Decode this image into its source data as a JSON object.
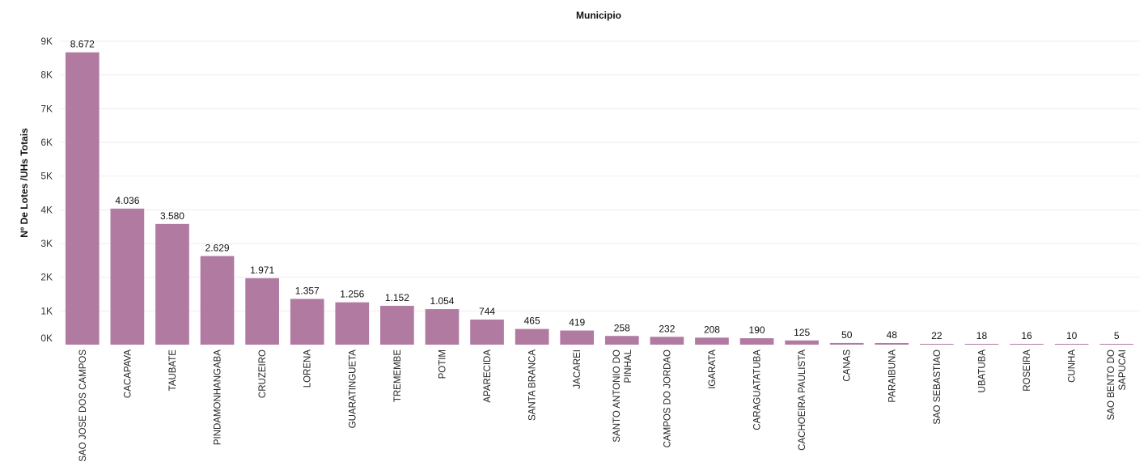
{
  "chart_data": {
    "type": "bar",
    "title": "Municipio",
    "ylabel": "Nº De Lotes /UHs Totais",
    "xlabel": "",
    "ylim": [
      0,
      9000
    ],
    "yticks": [
      {
        "value": 0,
        "label": "0K"
      },
      {
        "value": 1000,
        "label": "1K"
      },
      {
        "value": 2000,
        "label": "2K"
      },
      {
        "value": 3000,
        "label": "3K"
      },
      {
        "value": 4000,
        "label": "4K"
      },
      {
        "value": 5000,
        "label": "5K"
      },
      {
        "value": 6000,
        "label": "6K"
      },
      {
        "value": 7000,
        "label": "7K"
      },
      {
        "value": 8000,
        "label": "8K"
      },
      {
        "value": 9000,
        "label": "9K"
      }
    ],
    "grid": true,
    "bar_color": "#b07aa1",
    "categories": [
      [
        "SAO JOSE DOS CAMPOS"
      ],
      [
        "CACAPAVA"
      ],
      [
        "TAUBATE"
      ],
      [
        "PINDAMONHANGABA"
      ],
      [
        "CRUZEIRO"
      ],
      [
        "LORENA"
      ],
      [
        "GUARATINGUETA"
      ],
      [
        "TREMEMBE"
      ],
      [
        "POTIM"
      ],
      [
        "APARECIDA"
      ],
      [
        "SANTA BRANCA"
      ],
      [
        "JACAREI"
      ],
      [
        "SANTO ANTONIO DO",
        "PINHAL"
      ],
      [
        "CAMPOS DO JORDAO"
      ],
      [
        "IGARATA"
      ],
      [
        "CARAGUATATUBA"
      ],
      [
        "CACHOEIRA PAULISTA"
      ],
      [
        "CANAS"
      ],
      [
        "PARAIBUNA"
      ],
      [
        "SAO SEBASTIAO"
      ],
      [
        "UBATUBA"
      ],
      [
        "ROSEIRA"
      ],
      [
        "CUNHA"
      ],
      [
        "SAO BENTO DO",
        "SAPUCAI"
      ]
    ],
    "values": [
      8672,
      4036,
      3580,
      2629,
      1971,
      1357,
      1256,
      1152,
      1054,
      744,
      465,
      419,
      258,
      232,
      208,
      190,
      125,
      50,
      48,
      22,
      18,
      16,
      10,
      5
    ],
    "value_labels": [
      "8.672",
      "4.036",
      "3.580",
      "2.629",
      "1.971",
      "1.357",
      "1.256",
      "1.152",
      "1.054",
      "744",
      "465",
      "419",
      "258",
      "232",
      "208",
      "190",
      "125",
      "50",
      "48",
      "22",
      "18",
      "16",
      "10",
      "5"
    ]
  }
}
